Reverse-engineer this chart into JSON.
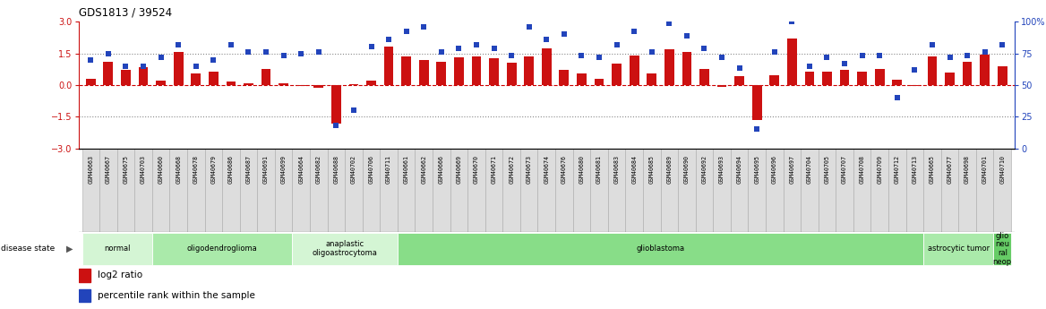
{
  "title": "GDS1813 / 39524",
  "samples": [
    "GSM40663",
    "GSM40667",
    "GSM40675",
    "GSM40703",
    "GSM40660",
    "GSM40668",
    "GSM40678",
    "GSM40679",
    "GSM40686",
    "GSM40687",
    "GSM40691",
    "GSM40699",
    "GSM40664",
    "GSM40682",
    "GSM40688",
    "GSM40702",
    "GSM40706",
    "GSM40711",
    "GSM40661",
    "GSM40662",
    "GSM40666",
    "GSM40669",
    "GSM40670",
    "GSM40671",
    "GSM40672",
    "GSM40673",
    "GSM40674",
    "GSM40676",
    "GSM40680",
    "GSM40681",
    "GSM40683",
    "GSM40684",
    "GSM40685",
    "GSM40689",
    "GSM40690",
    "GSM40692",
    "GSM40693",
    "GSM40694",
    "GSM40695",
    "GSM40696",
    "GSM40697",
    "GSM40704",
    "GSM40705",
    "GSM40707",
    "GSM40708",
    "GSM40709",
    "GSM40712",
    "GSM40713",
    "GSM40665",
    "GSM40677",
    "GSM40698",
    "GSM40701",
    "GSM40710"
  ],
  "log2_ratio": [
    0.3,
    1.1,
    0.7,
    0.85,
    0.22,
    1.55,
    0.55,
    0.65,
    0.15,
    0.08,
    0.75,
    0.1,
    -0.05,
    -0.12,
    -1.85,
    0.05,
    0.22,
    1.8,
    1.35,
    1.2,
    1.1,
    1.3,
    1.35,
    1.28,
    1.05,
    1.35,
    1.75,
    0.7,
    0.55,
    0.3,
    1.0,
    1.4,
    0.55,
    1.7,
    1.55,
    0.75,
    -0.08,
    0.42,
    -1.65,
    0.45,
    2.2,
    0.65,
    0.65,
    0.7,
    0.65,
    0.75,
    0.25,
    -0.05,
    1.35,
    0.6,
    1.1,
    1.45,
    0.9
  ],
  "percentile": [
    70,
    75,
    65,
    65,
    72,
    82,
    65,
    70,
    82,
    76,
    76,
    73,
    75,
    76,
    18,
    30,
    80,
    86,
    92,
    96,
    76,
    79,
    82,
    79,
    73,
    96,
    86,
    90,
    73,
    72,
    82,
    92,
    76,
    99,
    89,
    79,
    72,
    63,
    15,
    76,
    100,
    65,
    72,
    67,
    73,
    73,
    40,
    62,
    82,
    72,
    73,
    76,
    82
  ],
  "disease_groups": [
    {
      "label": "normal",
      "start": 0,
      "end": 4,
      "color": "#d4f5d4"
    },
    {
      "label": "oligodendroglioma",
      "start": 4,
      "end": 12,
      "color": "#aaeaaa"
    },
    {
      "label": "anaplastic\noligoastrocytoma",
      "start": 12,
      "end": 18,
      "color": "#d4f5d4"
    },
    {
      "label": "glioblastoma",
      "start": 18,
      "end": 48,
      "color": "#88dd88"
    },
    {
      "label": "astrocytic tumor",
      "start": 48,
      "end": 52,
      "color": "#aaeaaa"
    },
    {
      "label": "glio\nneu\nral\nneop",
      "start": 52,
      "end": 53,
      "color": "#66cc66"
    }
  ],
  "bar_color": "#cc1111",
  "dot_color": "#2244bb",
  "ylim_left": [
    -3,
    3
  ],
  "ylim_right": [
    0,
    100
  ],
  "yticks_left": [
    -3,
    -1.5,
    0,
    1.5,
    3
  ],
  "yticks_right": [
    0,
    25,
    50,
    75,
    100
  ],
  "hlines": [
    {
      "y": 1.5,
      "color": "#888888",
      "style": "dotted",
      "lw": 0.8
    },
    {
      "y": 0.0,
      "color": "#cc0000",
      "style": "dashed",
      "lw": 0.8
    },
    {
      "y": -1.5,
      "color": "#888888",
      "style": "dotted",
      "lw": 0.8
    }
  ],
  "sample_box_color": "#dddddd",
  "sample_box_edge": "#aaaaaa"
}
